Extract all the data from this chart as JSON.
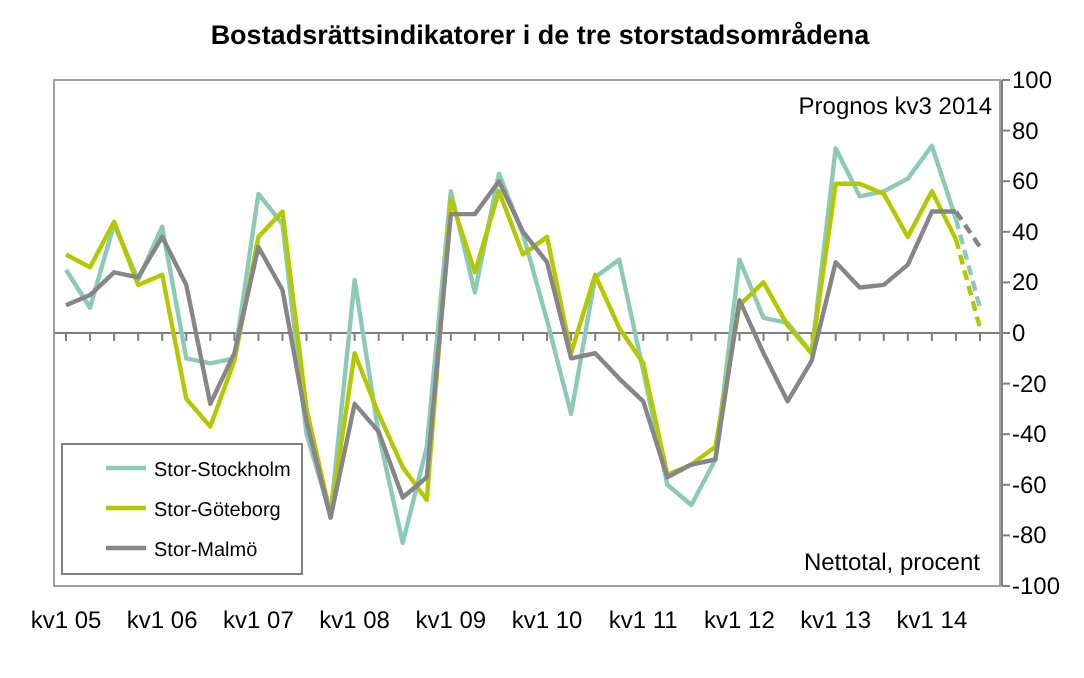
{
  "chart_data": {
    "type": "line",
    "title": "Bostadsrättsindikatorer i de tre storstadsområdena",
    "categories": [
      "kv1 05",
      null,
      null,
      null,
      "kv1 06",
      null,
      null,
      null,
      "kv1 07",
      null,
      null,
      null,
      "kv1 08",
      null,
      null,
      null,
      "kv1 09",
      null,
      null,
      null,
      "kv1 10",
      null,
      null,
      null,
      "kv1 11",
      null,
      null,
      null,
      "kv1 12",
      null,
      null,
      null,
      "kv1 13",
      null,
      null,
      null,
      "kv1 14",
      null,
      null
    ],
    "series": [
      {
        "name": "Stor-Stockholm",
        "color": "#8ccab8",
        "values": [
          25,
          10,
          43,
          21,
          42,
          -10,
          -12,
          -10,
          55,
          43,
          -40,
          -72,
          21,
          -40,
          -83,
          -45,
          56,
          16,
          63,
          39,
          5,
          -32,
          22,
          29,
          -15,
          -60,
          -68,
          -50,
          29,
          6,
          4,
          -8,
          73,
          54,
          56,
          61,
          74,
          45,
          null
        ]
      },
      {
        "name": "Stor-Göteborg",
        "color": "#b4c800",
        "values": [
          31,
          26,
          44,
          19,
          23,
          -26,
          -37,
          -11,
          38,
          48,
          -30,
          -72,
          -8,
          -32,
          -53,
          -66,
          53,
          24,
          56,
          31,
          38,
          -8,
          23,
          2,
          -12,
          -56,
          -52,
          -45,
          11,
          20,
          3,
          -8,
          59,
          59,
          55,
          38,
          56,
          37,
          null
        ]
      },
      {
        "name": "Stor-Malmö",
        "color": "#85858a",
        "values": [
          11,
          15,
          24,
          22,
          38,
          19,
          -28,
          -8,
          34,
          17,
          -35,
          -73,
          -28,
          -39,
          -65,
          -57,
          47,
          47,
          60,
          40,
          28,
          -10,
          -8,
          -18,
          -27,
          -57,
          -52,
          -50,
          13,
          -8,
          -27,
          -11,
          28,
          18,
          19,
          27,
          48,
          48,
          null
        ]
      },
      {
        "color": "#8ccab8",
        "line_style": "dashed",
        "values": [
          null,
          null,
          null,
          null,
          null,
          null,
          null,
          null,
          null,
          null,
          null,
          null,
          null,
          null,
          null,
          null,
          null,
          null,
          null,
          null,
          null,
          null,
          null,
          null,
          null,
          null,
          null,
          null,
          null,
          null,
          null,
          null,
          null,
          null,
          null,
          null,
          null,
          45,
          10
        ]
      },
      {
        "color": "#b4c800",
        "line_style": "dashed",
        "values": [
          null,
          null,
          null,
          null,
          null,
          null,
          null,
          null,
          null,
          null,
          null,
          null,
          null,
          null,
          null,
          null,
          null,
          null,
          null,
          null,
          null,
          null,
          null,
          null,
          null,
          null,
          null,
          null,
          null,
          null,
          null,
          null,
          null,
          null,
          null,
          null,
          null,
          37,
          2
        ]
      },
      {
        "color": "#85858a",
        "line_style": "dashed",
        "values": [
          null,
          null,
          null,
          null,
          null,
          null,
          null,
          null,
          null,
          null,
          null,
          null,
          null,
          null,
          null,
          null,
          null,
          null,
          null,
          null,
          null,
          null,
          null,
          null,
          null,
          null,
          null,
          null,
          null,
          null,
          null,
          null,
          null,
          null,
          null,
          null,
          null,
          48,
          34
        ]
      }
    ],
    "ylim": [
      -100,
      100
    ],
    "yticks": [
      -100,
      -80,
      -60,
      -40,
      -20,
      0,
      20,
      40,
      60,
      80,
      100
    ],
    "annotations": [
      "Prognos kv3 2014",
      "Nettotal, procent"
    ],
    "legend": "bottom left",
    "line_style": "solid",
    "marker": "none"
  }
}
